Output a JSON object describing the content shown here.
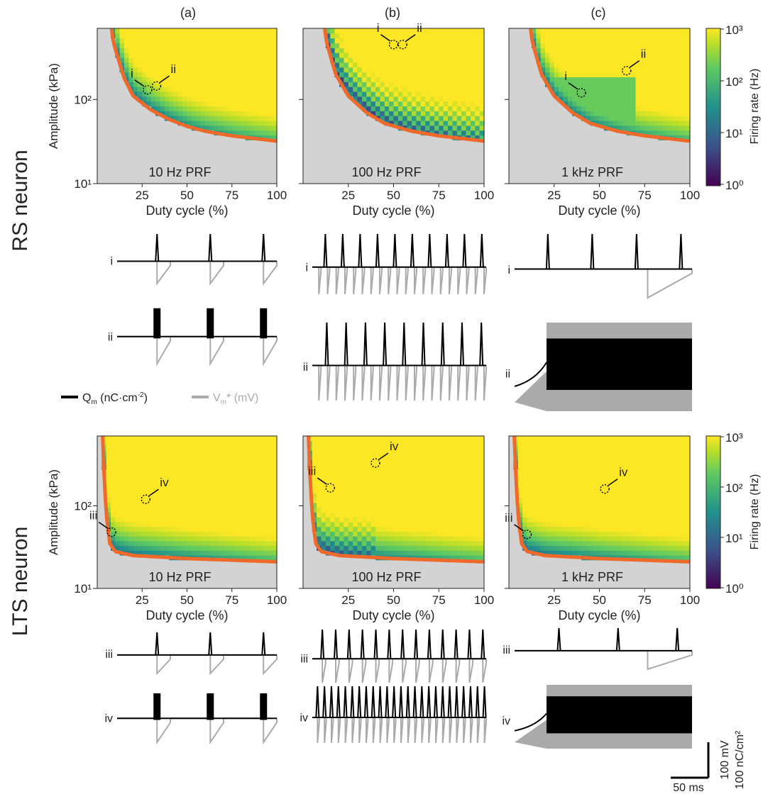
{
  "figure": {
    "column_labels": [
      "(a)",
      "(b)",
      "(c)"
    ],
    "row_labels": [
      "RS neuron",
      "LTS neuron"
    ],
    "legend": {
      "charge_label": "Q",
      "charge_sub": "m",
      "charge_unit": " (nC·cm",
      "charge_sup": "-2",
      "charge_close": ")",
      "voltage_label": "V",
      "voltage_sub": "m",
      "voltage_unit": "* (mV)",
      "charge_color": "#000000",
      "voltage_color": "#aaaaaa"
    },
    "scalebar": {
      "v1": "100 mV",
      "v2": "100 nC/cm²",
      "h": "50 ms"
    },
    "colorbar": {
      "label": "Firing rate (Hz)",
      "ticks": [
        "10³",
        "10²",
        "10¹",
        "10⁰"
      ],
      "colors": [
        "#440154",
        "#3b528b",
        "#21918c",
        "#5ec962",
        "#b8de29",
        "#fde725"
      ]
    },
    "colors": {
      "threshold_curve": "#ef6a2a",
      "no_response": "#d3d3d3"
    }
  },
  "chart_data": [
    {
      "type": "heatmap",
      "neuron": "RS",
      "panel": "(a)",
      "annotation": "10 Hz PRF",
      "xlabel": "Duty cycle (%)",
      "ylabel": "Amplitude (kPa)",
      "xlim": [
        0,
        100
      ],
      "ylim": [
        10,
        700
      ],
      "xticks": [
        "25",
        "50",
        "75",
        "100"
      ],
      "yticks": [
        "10¹",
        "10²"
      ],
      "yscale": "log",
      "markers": [
        {
          "label": "i",
          "x": 28,
          "y": 130
        },
        {
          "label": "ii",
          "x": 33,
          "y": 145
        }
      ],
      "threshold": [
        [
          8,
          600
        ],
        [
          10,
          400
        ],
        [
          15,
          180
        ],
        [
          20,
          110
        ],
        [
          30,
          75
        ],
        [
          40,
          58
        ],
        [
          50,
          48
        ],
        [
          60,
          42
        ],
        [
          75,
          37
        ],
        [
          100,
          32
        ]
      ]
    },
    {
      "type": "heatmap",
      "neuron": "RS",
      "panel": "(b)",
      "annotation": "100 Hz PRF",
      "xlabel": "Duty cycle (%)",
      "ylabel": "Amplitude (kPa)",
      "xlim": [
        0,
        100
      ],
      "ylim": [
        10,
        700
      ],
      "xticks": [
        "25",
        "50",
        "75",
        "100"
      ],
      "yticks": [
        "10¹",
        "10²"
      ],
      "yscale": "log",
      "markers": [
        {
          "label": "i",
          "x": 50,
          "y": 450
        },
        {
          "label": "ii",
          "x": 55,
          "y": 450
        }
      ],
      "threshold": [
        [
          12,
          600
        ],
        [
          14,
          400
        ],
        [
          18,
          200
        ],
        [
          25,
          110
        ],
        [
          35,
          70
        ],
        [
          45,
          52
        ],
        [
          60,
          42
        ],
        [
          75,
          37
        ],
        [
          100,
          32
        ]
      ]
    },
    {
      "type": "heatmap",
      "neuron": "RS",
      "panel": "(c)",
      "annotation": "1 kHz PRF",
      "xlabel": "Duty cycle (%)",
      "ylabel": "Amplitude (kPa)",
      "xlim": [
        0,
        100
      ],
      "ylim": [
        10,
        700
      ],
      "xticks": [
        "25",
        "50",
        "75",
        "100"
      ],
      "yticks": [
        "10¹",
        "10²"
      ],
      "yscale": "log",
      "markers": [
        {
          "label": "i",
          "x": 40,
          "y": 120
        },
        {
          "label": "ii",
          "x": 65,
          "y": 220
        }
      ],
      "threshold": [
        [
          12,
          600
        ],
        [
          14,
          400
        ],
        [
          18,
          200
        ],
        [
          25,
          110
        ],
        [
          35,
          70
        ],
        [
          45,
          52
        ],
        [
          60,
          42
        ],
        [
          75,
          37
        ],
        [
          100,
          32
        ]
      ]
    },
    {
      "type": "heatmap",
      "neuron": "LTS",
      "panel": "(a)",
      "annotation": "10 Hz PRF",
      "xlabel": "Duty cycle (%)",
      "ylabel": "Amplitude (kPa)",
      "xlim": [
        0,
        100
      ],
      "ylim": [
        10,
        700
      ],
      "xticks": [
        "25",
        "50",
        "75",
        "100"
      ],
      "yticks": [
        "10¹",
        "10²"
      ],
      "yscale": "log",
      "markers": [
        {
          "label": "iii",
          "x": 8,
          "y": 48
        },
        {
          "label": "iv",
          "x": 27,
          "y": 120
        }
      ],
      "threshold": [
        [
          3,
          650
        ],
        [
          4,
          200
        ],
        [
          5,
          80
        ],
        [
          7,
          35
        ],
        [
          10,
          28
        ],
        [
          20,
          25
        ],
        [
          50,
          23
        ],
        [
          100,
          21
        ]
      ]
    },
    {
      "type": "heatmap",
      "neuron": "LTS",
      "panel": "(b)",
      "annotation": "100 Hz PRF",
      "xlabel": "Duty cycle (%)",
      "ylabel": "Amplitude (kPa)",
      "xlim": [
        0,
        100
      ],
      "ylim": [
        10,
        700
      ],
      "xticks": [
        "25",
        "50",
        "75",
        "100"
      ],
      "yticks": [
        "10¹",
        "10²"
      ],
      "yscale": "log",
      "markers": [
        {
          "label": "iii",
          "x": 15,
          "y": 165
        },
        {
          "label": "iv",
          "x": 40,
          "y": 330
        }
      ],
      "threshold": [
        [
          3,
          650
        ],
        [
          4,
          200
        ],
        [
          5,
          80
        ],
        [
          7,
          35
        ],
        [
          10,
          28
        ],
        [
          20,
          25
        ],
        [
          50,
          23
        ],
        [
          100,
          21
        ]
      ]
    },
    {
      "type": "heatmap",
      "neuron": "LTS",
      "panel": "(c)",
      "annotation": "1 kHz PRF",
      "xlabel": "Duty cycle (%)",
      "ylabel": "Amplitude (kPa)",
      "xlim": [
        0,
        100
      ],
      "ylim": [
        10,
        700
      ],
      "xticks": [
        "25",
        "50",
        "75",
        "100"
      ],
      "yticks": [
        "10¹",
        "10²"
      ],
      "yscale": "log",
      "markers": [
        {
          "label": "iii",
          "x": 10,
          "y": 45
        },
        {
          "label": "iv",
          "x": 53,
          "y": 160
        }
      ],
      "threshold": [
        [
          3,
          650
        ],
        [
          4,
          200
        ],
        [
          5,
          80
        ],
        [
          7,
          35
        ],
        [
          10,
          28
        ],
        [
          20,
          25
        ],
        [
          50,
          23
        ],
        [
          100,
          21
        ]
      ]
    }
  ],
  "traces": [
    {
      "label": "i",
      "kind": "spikes",
      "spikes": 3,
      "period": 3
    },
    {
      "label": "ii",
      "kind": "bursts",
      "spikes": 3,
      "period": 3
    },
    {
      "label": "i",
      "kind": "spikes",
      "spikes": 10,
      "period": 20
    },
    {
      "label": "ii",
      "kind": "spikes",
      "spikes": 9,
      "period": 20
    },
    {
      "label": "i",
      "kind": "spikes",
      "spikes": 4,
      "period": 1
    },
    {
      "label": "ii",
      "kind": "dense",
      "spikes": 0,
      "period": 1
    },
    {
      "label": "iii",
      "kind": "spikes",
      "spikes": 3,
      "period": 3
    },
    {
      "label": "iv",
      "kind": "bursts",
      "spikes": 3,
      "period": 3
    },
    {
      "label": "iii",
      "kind": "spikes",
      "spikes": 13,
      "period": 13
    },
    {
      "label": "iv",
      "kind": "spikes",
      "spikes": 25,
      "period": 25
    },
    {
      "label": "iii",
      "kind": "spikes",
      "spikes": 3,
      "period": 1
    },
    {
      "label": "iv",
      "kind": "dense",
      "spikes": 0,
      "period": 1
    }
  ]
}
